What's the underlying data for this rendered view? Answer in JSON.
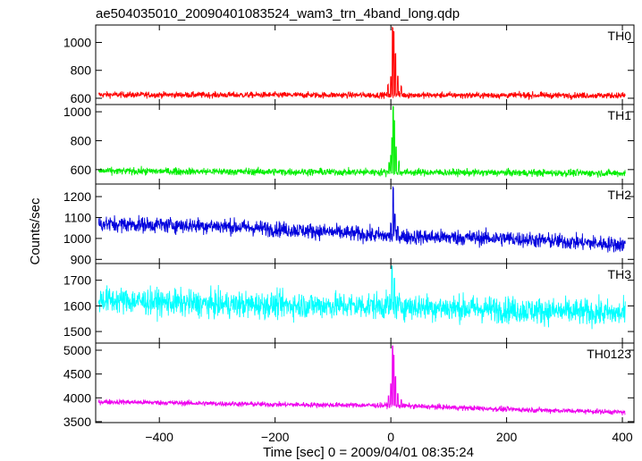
{
  "chart_data": {
    "type": "line",
    "title": "ae504035010_20090401083524_wam3_trn_4band_long.qdp",
    "xlabel": "Time [sec] 0 = 2009/04/01 08:35:24",
    "ylabel": "Counts/sec",
    "xlim": [
      -510,
      420
    ],
    "xticks": [
      -400,
      -200,
      0,
      200,
      400
    ],
    "x_tick_labels": [
      "−400",
      "−200",
      "0",
      "200",
      "400"
    ],
    "series": [
      {
        "name": "TH0",
        "color": "#ff0000",
        "ylim": [
          555,
          1125
        ],
        "yticks": [
          600,
          800,
          1000
        ],
        "baseline": [
          [
            -510,
            625
          ],
          [
            400,
            620
          ]
        ],
        "noise": 22,
        "spikes": [
          [
            -5,
            700
          ],
          [
            0,
            760
          ],
          [
            3,
            1110
          ],
          [
            5,
            1080
          ],
          [
            8,
            920
          ],
          [
            12,
            760
          ],
          [
            18,
            690
          ]
        ]
      },
      {
        "name": "TH1",
        "color": "#00ee00",
        "ylim": [
          500,
          1050
        ],
        "yticks": [
          600,
          800,
          1000
        ],
        "baseline": [
          [
            -510,
            590
          ],
          [
            400,
            575
          ]
        ],
        "noise": 25,
        "spikes": [
          [
            -3,
            650
          ],
          [
            0,
            700
          ],
          [
            2,
            820
          ],
          [
            4,
            1040
          ],
          [
            6,
            940
          ],
          [
            9,
            760
          ],
          [
            14,
            660
          ]
        ]
      },
      {
        "name": "TH2",
        "color": "#0000dd",
        "ylim": [
          880,
          1260
        ],
        "yticks": [
          900,
          1000,
          1100,
          1200
        ],
        "baseline": [
          [
            -510,
            1070
          ],
          [
            -300,
            1060
          ],
          [
            -100,
            1030
          ],
          [
            0,
            1010
          ],
          [
            200,
            1000
          ],
          [
            400,
            970
          ]
        ],
        "noise": 38,
        "spikes": [
          [
            0,
            1080
          ],
          [
            4,
            1250
          ],
          [
            7,
            1120
          ],
          [
            12,
            1060
          ]
        ]
      },
      {
        "name": "TH3",
        "color": "#00ffff",
        "ylim": [
          1455,
          1765
        ],
        "yticks": [
          1500,
          1600,
          1700
        ],
        "baseline": [
          [
            -510,
            1625
          ],
          [
            -300,
            1605
          ],
          [
            0,
            1600
          ],
          [
            200,
            1585
          ],
          [
            400,
            1570
          ]
        ],
        "noise": 52,
        "spikes": [
          [
            2,
            1760
          ],
          [
            6,
            1720
          ]
        ]
      },
      {
        "name": "TH0123",
        "color": "#ee00ee",
        "ylim": [
          3480,
          5150
        ],
        "yticks": [
          3500,
          4000,
          4500,
          5000
        ],
        "baseline": [
          [
            -510,
            3920
          ],
          [
            -200,
            3860
          ],
          [
            0,
            3840
          ],
          [
            200,
            3760
          ],
          [
            400,
            3700
          ]
        ],
        "noise": 55,
        "spikes": [
          [
            -4,
            4050
          ],
          [
            0,
            4300
          ],
          [
            3,
            5100
          ],
          [
            5,
            4900
          ],
          [
            8,
            4450
          ],
          [
            12,
            4100
          ],
          [
            18,
            3960
          ]
        ]
      }
    ]
  }
}
